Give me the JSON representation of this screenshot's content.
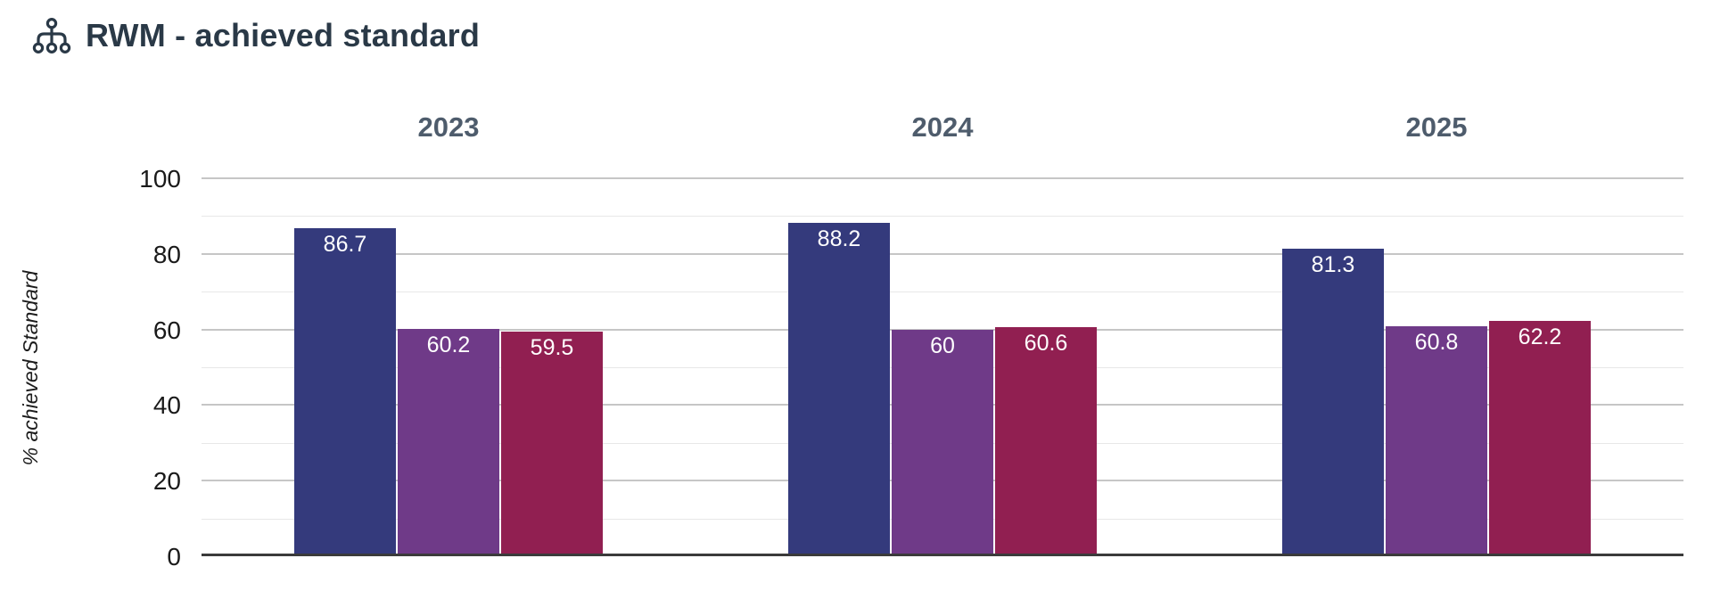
{
  "header": {
    "title": "RWM - achieved standard",
    "icon": "sitemap-icon"
  },
  "chart_data": {
    "type": "bar",
    "title": "RWM - achieved standard",
    "ylabel": "% achieved Standard",
    "ylim": [
      0,
      100
    ],
    "yticks_major": [
      100,
      80,
      60,
      40,
      20,
      0
    ],
    "ytick_labels": [
      "100",
      "80",
      "60",
      "40",
      "20",
      "0"
    ],
    "yticks_minor": [
      90,
      70,
      50,
      30,
      10
    ],
    "grid": true,
    "legend": "none",
    "categories": [
      "2023",
      "2024",
      "2025"
    ],
    "series": [
      {
        "color": "#343a7c",
        "values": [
          86.7,
          88.2,
          81.3
        ],
        "labels": [
          "86.7",
          "88.2",
          "81.3"
        ]
      },
      {
        "color": "#6f3a88",
        "values": [
          60.2,
          60.0,
          60.8
        ],
        "labels": [
          "60.2",
          "60",
          "60.8"
        ]
      },
      {
        "color": "#911f51",
        "values": [
          59.5,
          60.6,
          62.2
        ],
        "labels": [
          "59.5",
          "60.6",
          "62.2"
        ]
      }
    ],
    "colors": {
      "title_text": "#2a3947",
      "year_label_text": "#4e5c6c",
      "tick_label_text": "#1a1a1a",
      "axis_line": "#3b3b3b",
      "grid_major": "#c6c6c6",
      "grid_minor": "#e8e8e8",
      "bar_label_text": "#ffffff"
    }
  }
}
